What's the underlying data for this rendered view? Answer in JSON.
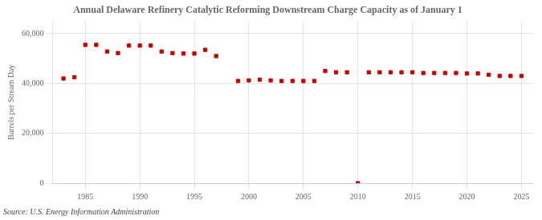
{
  "chart_data": {
    "type": "scatter",
    "title": "Annual Delaware Refinery Catalytic Reforming Downstream Charge Capacity as of January 1",
    "ylabel": "Barrels per Stream Day",
    "source": "Source: U.S. Energy Information Administration",
    "x": [
      1983,
      1984,
      1985,
      1986,
      1987,
      1988,
      1989,
      1990,
      1991,
      1992,
      1993,
      1994,
      1995,
      1996,
      1997,
      1999,
      2000,
      2001,
      2002,
      2003,
      2004,
      2005,
      2006,
      2007,
      2008,
      2009,
      2010,
      2011,
      2012,
      2013,
      2014,
      2015,
      2016,
      2017,
      2018,
      2019,
      2020,
      2021,
      2022,
      2023,
      2024,
      2025
    ],
    "values": [
      42000,
      42500,
      55500,
      55500,
      52800,
      52200,
      55200,
      55200,
      55200,
      52800,
      52200,
      52000,
      52000,
      53500,
      51000,
      41000,
      41200,
      41500,
      41200,
      41000,
      41000,
      41000,
      41000,
      45000,
      44500,
      44500,
      0,
      44500,
      44500,
      44500,
      44500,
      44500,
      44200,
      44200,
      44200,
      44200,
      44000,
      44000,
      43500,
      43000,
      43000,
      43000
    ],
    "color": "#cc0000",
    "marker": "square",
    "xlim": [
      1982,
      2026
    ],
    "xticks": [
      1985,
      1990,
      1995,
      2000,
      2005,
      2010,
      2015,
      2020,
      2025
    ],
    "ylim": [
      0,
      65000
    ],
    "yticks": [
      0,
      {
        "value": 20000,
        "label": "20,000"
      },
      {
        "value": 40000,
        "label": "40,000"
      },
      {
        "value": 60000,
        "label": "60,000"
      }
    ],
    "grid": true
  }
}
